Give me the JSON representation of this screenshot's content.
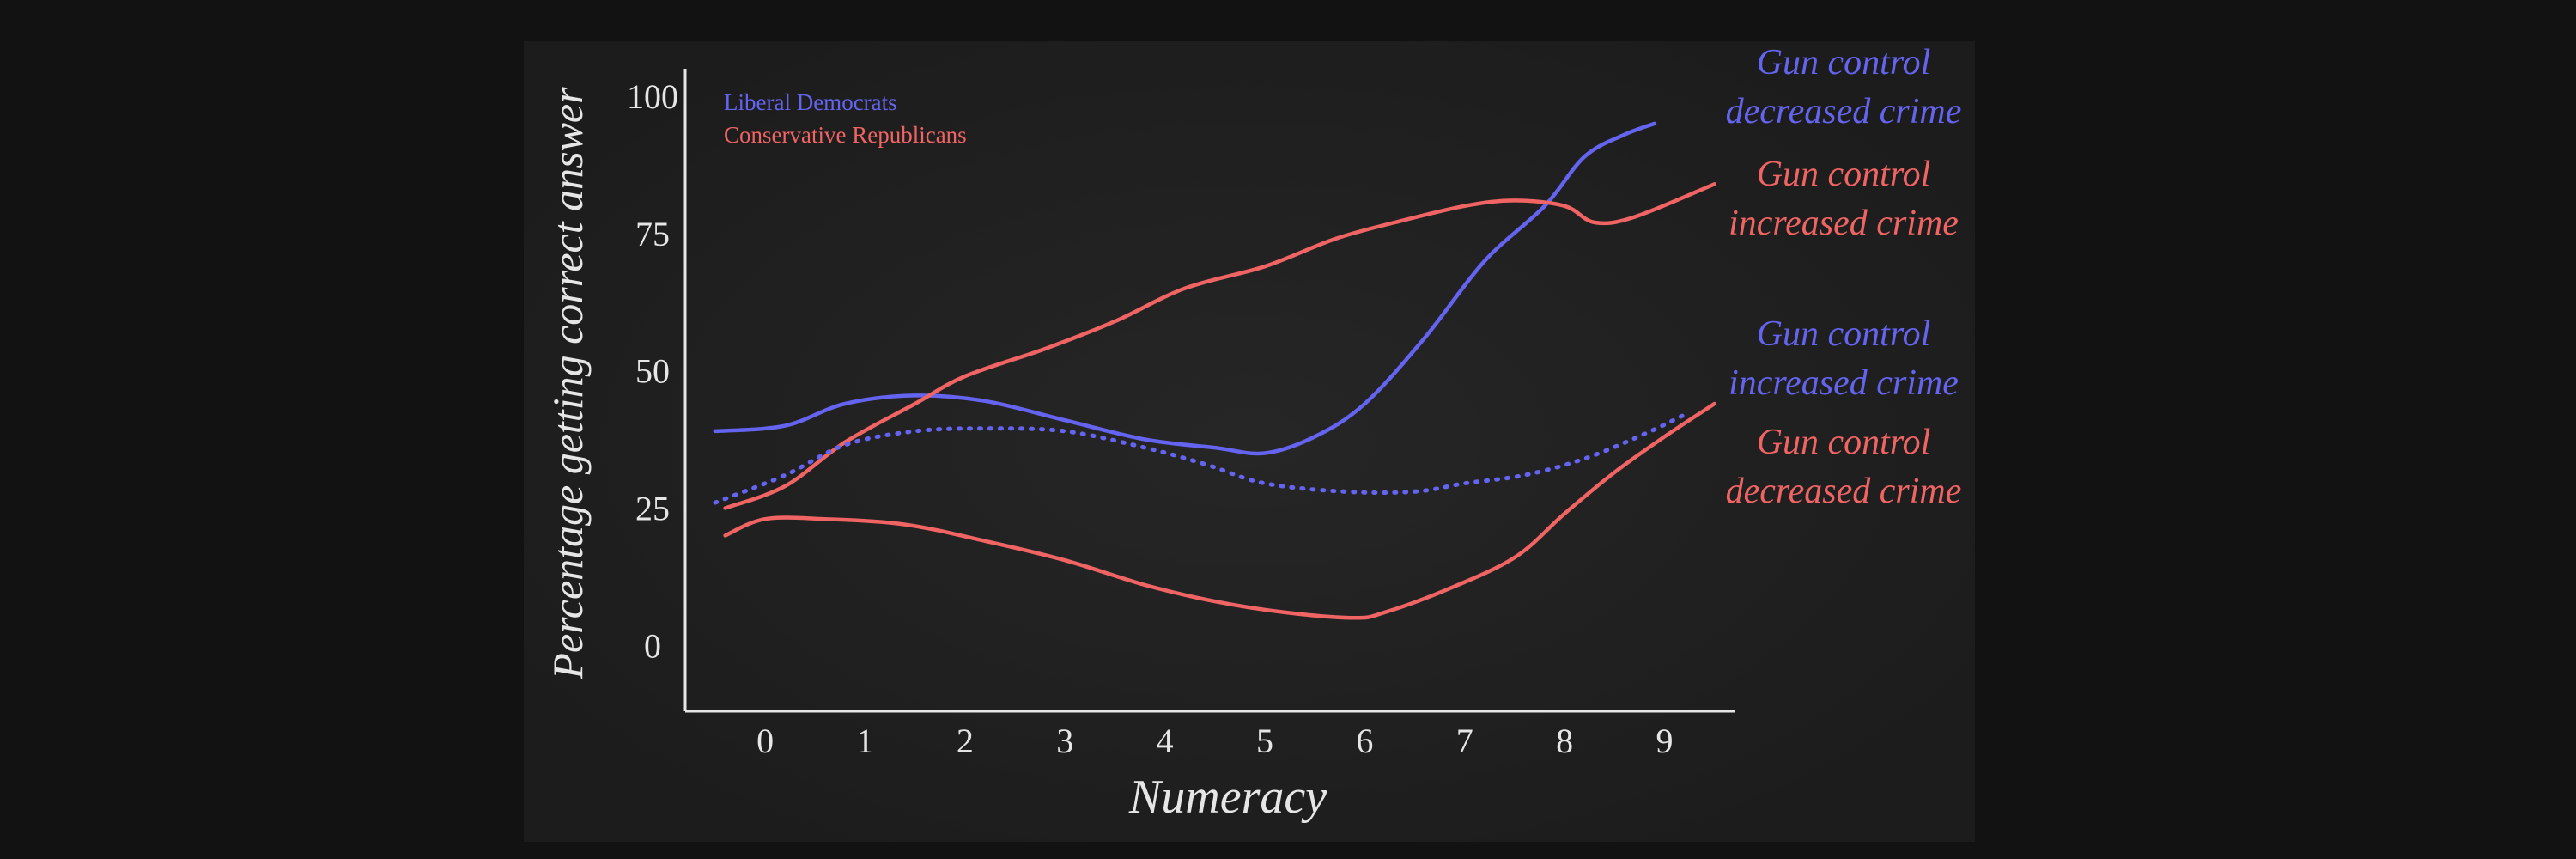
{
  "chart_data": {
    "type": "line",
    "xlabel": "Numeracy",
    "ylabel": "Percentage getting correct answer",
    "x_ticks": [
      "0",
      "1",
      "2",
      "3",
      "4",
      "5",
      "6",
      "7",
      "8",
      "9"
    ],
    "y_ticks": [
      "0",
      "25",
      "50",
      "75",
      "100"
    ],
    "xlim": [
      -0.8,
      9.7
    ],
    "ylim": [
      -12,
      105
    ],
    "grid": false,
    "legend_position": "top-left",
    "legend": [
      {
        "label": "Liberal Democrats",
        "color": "#6464f0"
      },
      {
        "label": "Conservative Republicans",
        "color": "#f06464"
      }
    ],
    "series": [
      {
        "id": "lib-dec",
        "color": "#6464f0",
        "style": "solid",
        "points": [
          [
            -0.5,
            39
          ],
          [
            0.2,
            40
          ],
          [
            0.8,
            44
          ],
          [
            1.5,
            45.5
          ],
          [
            2.2,
            44.5
          ],
          [
            3,
            41
          ],
          [
            3.8,
            37.5
          ],
          [
            4.5,
            36
          ],
          [
            5,
            35
          ],
          [
            5.5,
            38
          ],
          [
            6,
            44
          ],
          [
            6.6,
            56
          ],
          [
            7.2,
            70
          ],
          [
            7.8,
            80
          ],
          [
            8.2,
            89
          ],
          [
            8.6,
            93
          ],
          [
            8.9,
            95
          ]
        ]
      },
      {
        "id": "cons-inc",
        "color": "#f06464",
        "style": "solid",
        "points": [
          [
            -0.4,
            25
          ],
          [
            0.2,
            29
          ],
          [
            0.8,
            37
          ],
          [
            1.5,
            44
          ],
          [
            2,
            49
          ],
          [
            2.8,
            54
          ],
          [
            3.5,
            59
          ],
          [
            4.2,
            65
          ],
          [
            5,
            69
          ],
          [
            5.7,
            74
          ],
          [
            6.3,
            77
          ],
          [
            7,
            80
          ],
          [
            7.5,
            81
          ],
          [
            8,
            80
          ],
          [
            8.3,
            77
          ],
          [
            8.7,
            78
          ],
          [
            9.5,
            84
          ]
        ]
      },
      {
        "id": "lib-inc",
        "color": "#6464f0",
        "style": "dotted",
        "points": [
          [
            -0.5,
            26
          ],
          [
            0.2,
            31
          ],
          [
            0.8,
            36.5
          ],
          [
            1.5,
            39
          ],
          [
            2.2,
            39.5
          ],
          [
            3,
            39
          ],
          [
            3.8,
            36
          ],
          [
            4.4,
            33
          ],
          [
            5,
            29.5
          ],
          [
            5.8,
            28
          ],
          [
            6.5,
            28
          ],
          [
            7,
            29.5
          ],
          [
            7.6,
            31
          ],
          [
            8.2,
            34
          ],
          [
            8.8,
            38.5
          ],
          [
            9.2,
            42
          ]
        ]
      },
      {
        "id": "cons-dec",
        "color": "#f06464",
        "style": "solid",
        "points": [
          [
            -0.4,
            20
          ],
          [
            0,
            23
          ],
          [
            0.6,
            23
          ],
          [
            1.4,
            22
          ],
          [
            2.2,
            19
          ],
          [
            3,
            15.5
          ],
          [
            3.8,
            11
          ],
          [
            4.5,
            8
          ],
          [
            5.2,
            6
          ],
          [
            5.9,
            5
          ],
          [
            6.2,
            6
          ],
          [
            6.8,
            10
          ],
          [
            7.5,
            16
          ],
          [
            8,
            24
          ],
          [
            8.5,
            31.5
          ],
          [
            9,
            38
          ],
          [
            9.5,
            44
          ]
        ]
      }
    ],
    "annotations": [
      {
        "id": "lib-dec",
        "lines": [
          "Gun control",
          "decreased crime"
        ],
        "color": "#6464f0"
      },
      {
        "id": "cons-inc",
        "lines": [
          "Gun control",
          "increased crime"
        ],
        "color": "#f06464"
      },
      {
        "id": "lib-inc",
        "lines": [
          "Gun control",
          "increased crime"
        ],
        "color": "#6464f0"
      },
      {
        "id": "cons-dec",
        "lines": [
          "Gun control",
          "decreased crime"
        ],
        "color": "#f06464"
      }
    ]
  }
}
